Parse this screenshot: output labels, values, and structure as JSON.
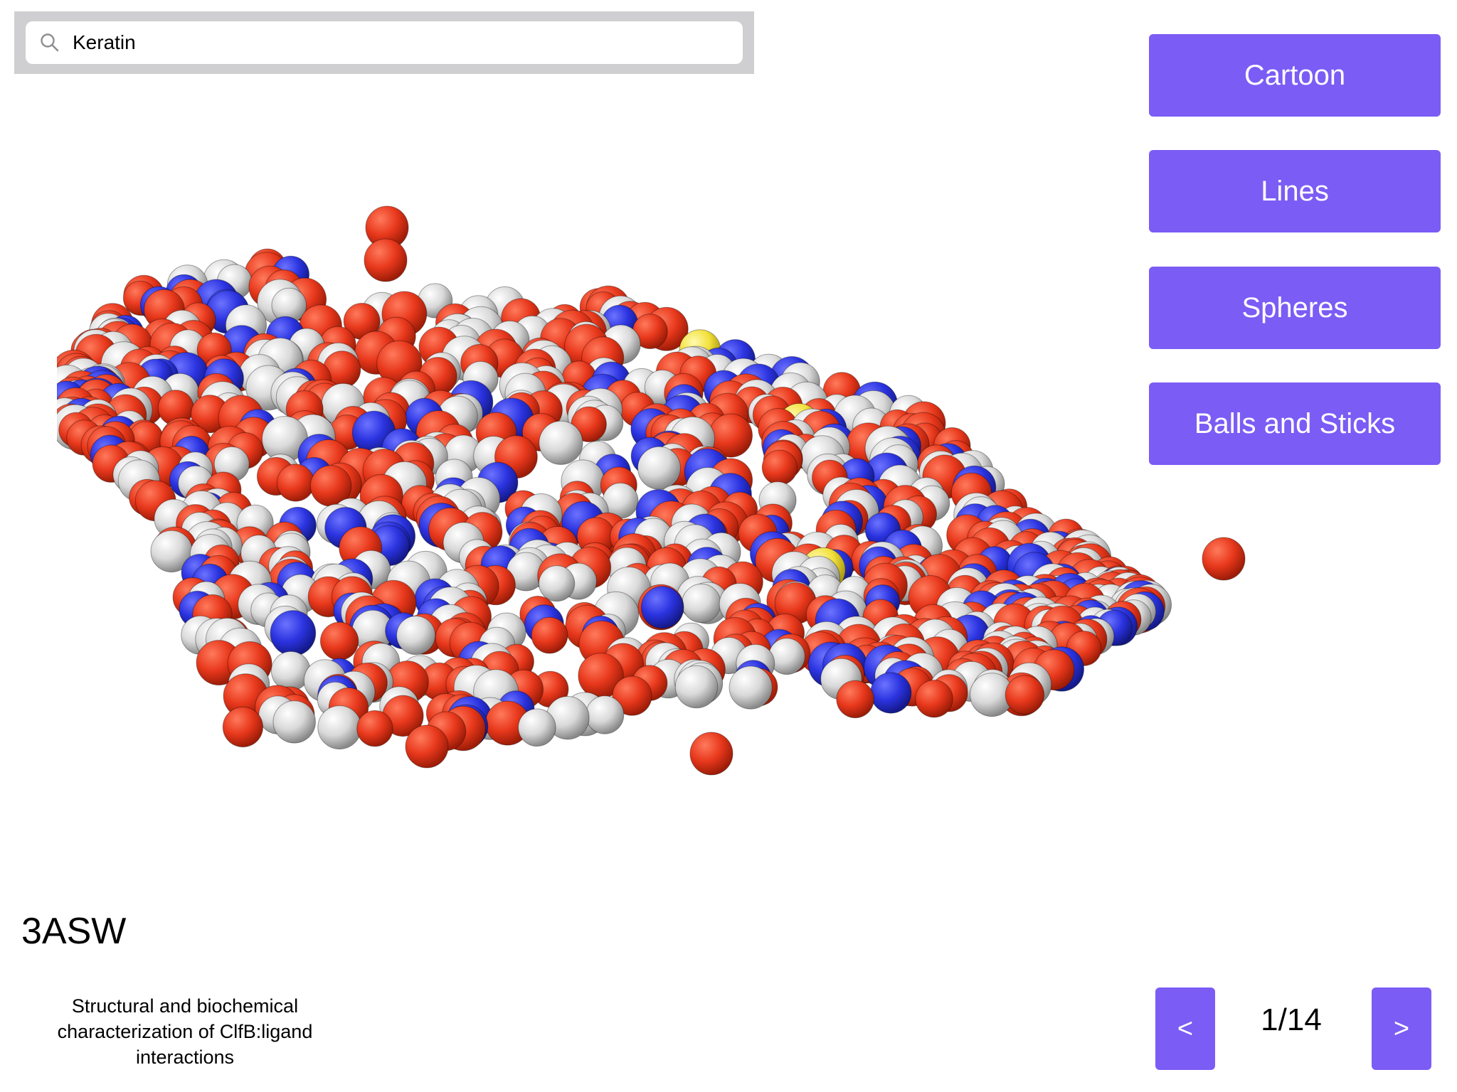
{
  "search": {
    "value": "Keratin",
    "icon": "search-icon"
  },
  "representations": {
    "cartoon_label": "Cartoon",
    "lines_label": "Lines",
    "spheres_label": "Spheres",
    "balls_sticks_label": "Balls and Sticks"
  },
  "structure": {
    "pdb_id": "3ASW",
    "description": "Structural and biochemical characterization of ClfB:ligand interactions"
  },
  "pagination": {
    "prev_label": "<",
    "next_label": ">",
    "indicator": "1/14"
  },
  "colors": {
    "accent": "#7b5cf5",
    "oxygen": "#e8381c",
    "nitrogen": "#2b33e0",
    "carbon": "#d9d9d9",
    "sulfur": "#f2e03a"
  }
}
